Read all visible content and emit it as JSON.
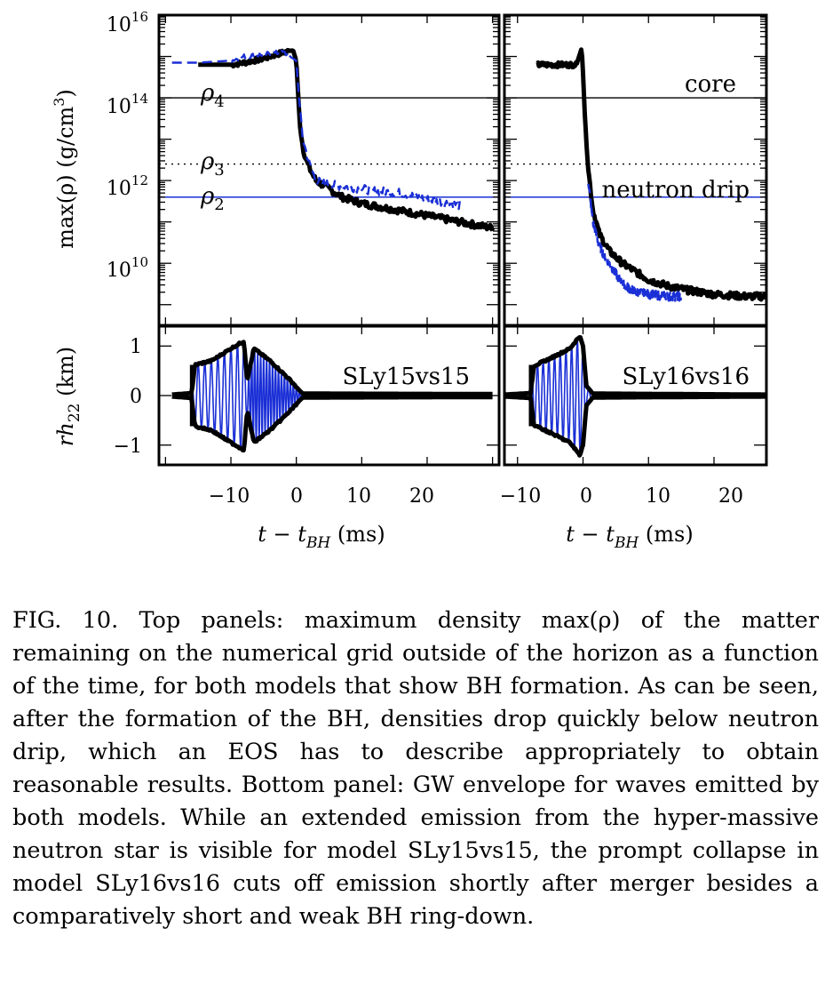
{
  "figure": {
    "xlabel_main": "t − t",
    "xlabel_sub": "BH",
    "xlabel_unit": " (ms)",
    "ylabel_top": "max(ρ) (g/cm",
    "ylabel_top_sup": "3",
    "ylabel_top_close": ")",
    "ylabel_bottom_main": "rh",
    "ylabel_bottom_sub": "22",
    "ylabel_bottom_unit": " (km)",
    "y_ticks_top": [
      {
        "base": "10",
        "exp": "16",
        "v": 16
      },
      {
        "base": "10",
        "exp": "14",
        "v": 14
      },
      {
        "base": "10",
        "exp": "12",
        "v": 12
      },
      {
        "base": "10",
        "exp": "10",
        "v": 10
      }
    ],
    "y_ticks_bottom": [
      "1",
      "0",
      "−1"
    ],
    "x_ticks": [
      "−10",
      "0",
      "10",
      "20"
    ],
    "annotations": {
      "rho4": "ρ",
      "rho4_sub": "4",
      "rho3": "ρ",
      "rho3_sub": "3",
      "rho2": "ρ",
      "rho2_sub": "2",
      "core": "core",
      "neutron_drip": "neutron drip"
    },
    "model_labels": [
      "SLy15vs15",
      "SLy16vs16"
    ],
    "colors": {
      "main": "#000000",
      "secondary": "#1a2fd6",
      "reference": "#1a2fd6"
    }
  },
  "chart_data": [
    {
      "type": "line",
      "panel": "top-left",
      "model": "SLy15vs15",
      "xlim": [
        -21,
        31
      ],
      "ylim_log10": [
        8.5,
        16
      ],
      "reference_lines_log10": {
        "rho4": 14.0,
        "rho3": 12.4,
        "rho2": 11.6
      },
      "series": [
        {
          "style": "solid",
          "color": "#000000",
          "x": [
            -15,
            -10,
            -8,
            -5,
            -2,
            -0.5,
            0,
            0.3,
            0.6,
            1,
            1.5,
            2,
            3,
            5,
            7,
            10,
            15,
            20,
            25,
            30
          ],
          "y_log10": [
            14.8,
            14.8,
            14.85,
            14.95,
            15.1,
            15.15,
            14.9,
            14.0,
            13.3,
            12.8,
            12.5,
            12.3,
            12.0,
            11.8,
            11.6,
            11.45,
            11.3,
            11.15,
            11.0,
            10.85
          ]
        },
        {
          "style": "dashed",
          "color": "#1a2fd6",
          "x": [
            -19,
            -15,
            -10,
            -8,
            -5,
            -2,
            0,
            0.5,
            1,
            2,
            3,
            5,
            8,
            12,
            16,
            20,
            25
          ],
          "y_log10": [
            14.85,
            14.85,
            14.9,
            15.0,
            15.05,
            15.1,
            14.9,
            13.8,
            13.0,
            12.4,
            12.0,
            11.9,
            11.85,
            11.75,
            11.7,
            11.55,
            11.4
          ]
        }
      ]
    },
    {
      "type": "line",
      "panel": "top-right",
      "model": "SLy16vs16",
      "xlim": [
        -12,
        28
      ],
      "ylim_log10": [
        8.5,
        16
      ],
      "series": [
        {
          "style": "solid",
          "color": "#000000",
          "x": [
            -7,
            -1,
            -0.2,
            0,
            0.3,
            0.8,
            1.5,
            2.5,
            4,
            6,
            8,
            10,
            13,
            16,
            20,
            25,
            28
          ],
          "y_log10": [
            14.8,
            14.8,
            15.2,
            14.6,
            13.5,
            12.3,
            11.3,
            10.7,
            10.3,
            10.0,
            9.8,
            9.6,
            9.45,
            9.35,
            9.25,
            9.2,
            9.2
          ]
        },
        {
          "style": "dashed",
          "color": "#1a2fd6",
          "x": [
            0.8,
            1.5,
            2.5,
            4,
            6,
            8,
            10,
            13,
            15
          ],
          "y_log10": [
            12.0,
            11.0,
            10.4,
            10.0,
            9.5,
            9.3,
            9.25,
            9.2,
            9.2
          ]
        }
      ]
    },
    {
      "type": "line",
      "panel": "bottom-left",
      "model": "SLy15vs15",
      "xlim": [
        -21,
        31
      ],
      "ylim": [
        -1.4,
        1.4
      ],
      "series": [
        {
          "name": "",
          "style": "envelope",
          "color": "#000000",
          "x": [
            -19,
            -16,
            -15.5,
            -13,
            -10,
            -8,
            -7.5,
            -6.5,
            -4,
            -2,
            -0.5,
            0.5,
            1,
            30
          ],
          "amplitude": [
            0.02,
            0.05,
            0.62,
            0.7,
            0.95,
            1.1,
            0.3,
            0.95,
            0.7,
            0.45,
            0.25,
            0.1,
            0.04,
            0.03
          ]
        }
      ]
    },
    {
      "type": "line",
      "panel": "bottom-right",
      "model": "SLy16vs16",
      "xlim": [
        -12,
        28
      ],
      "ylim": [
        -1.4,
        1.4
      ],
      "series": [
        {
          "name": "",
          "style": "envelope",
          "color": "#000000",
          "x": [
            -12,
            -8,
            -7.5,
            -5,
            -2,
            -0.5,
            0,
            0.5,
            1.5,
            28
          ],
          "amplitude": [
            0.02,
            0.05,
            0.6,
            0.75,
            0.95,
            1.2,
            1.0,
            0.2,
            0.04,
            0.02
          ]
        }
      ]
    }
  ],
  "caption": {
    "label": "FIG. 10.",
    "text": "Top panels: maximum density max(ρ) of the matter remaining on the numerical grid outside of the horizon as a function of the time, for both models that show BH formation. As can be seen, after the formation of the BH, densities drop quickly below neutron drip, which an EOS has to describe appropriately to obtain reasonable results. Bottom panel: GW envelope for waves emitted by both models. While an extended emission from the hyper-massive neutron star is visible for model SLy15vs15, the prompt collapse in model SLy16vs16 cuts off emission shortly after merger besides a comparatively short and weak BH ring-down."
  }
}
